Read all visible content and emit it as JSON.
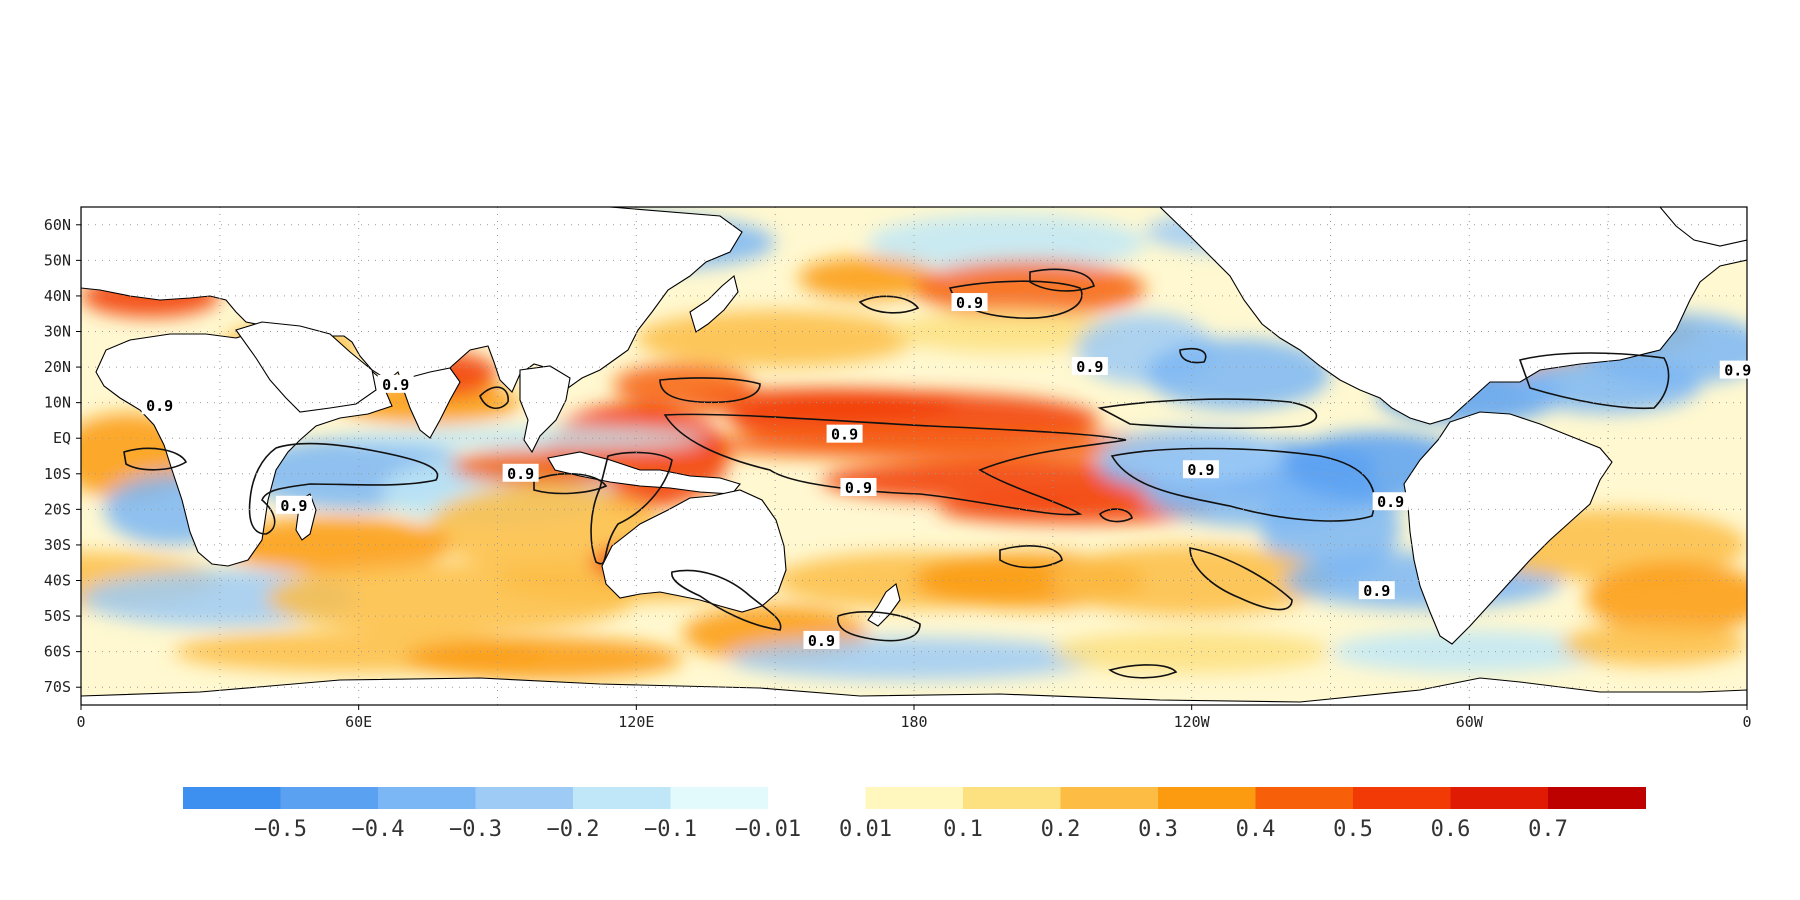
{
  "map": {
    "projection": "cylindrical equidistant",
    "lon_range": [
      0,
      360
    ],
    "lat_range": [
      -75,
      65
    ],
    "lat_ticks": [
      "60N",
      "50N",
      "40N",
      "30N",
      "20N",
      "10N",
      "EQ",
      "10S",
      "20S",
      "30S",
      "40S",
      "50S",
      "60S",
      "70S"
    ],
    "lon_ticks": [
      "0",
      "60E",
      "120E",
      "180",
      "120W",
      "60W",
      "0"
    ],
    "gridlines": "dotted",
    "contour_value": "0.9",
    "contour_labels": [
      "0.9",
      "0.9",
      "0.9",
      "0.9",
      "0.9",
      "0.9",
      "0.9",
      "0.9",
      "0.9",
      "0.9",
      "0.9",
      "0.9",
      "0.9"
    ]
  },
  "colorbar": {
    "labels": [
      "−0.5",
      "−0.4",
      "−0.3",
      "−0.2",
      "−0.1",
      "−0.01",
      "0.01",
      "0.1",
      "0.2",
      "0.3",
      "0.4",
      "0.5",
      "0.6",
      "0.7"
    ],
    "colors": [
      "#3d8ff0",
      "#5aa1f2",
      "#7bb6f5",
      "#9dcbf6",
      "#bfe7f7",
      "#e3fafd",
      "#ffffff",
      "#fff7bd",
      "#fde07f",
      "#fdbd45",
      "#fc9a10",
      "#f76008",
      "#f23a06",
      "#df1b04",
      "#bd0000"
    ]
  }
}
